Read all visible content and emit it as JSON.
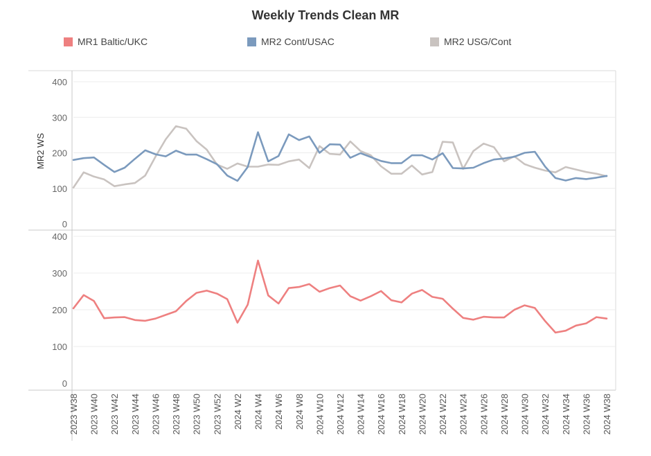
{
  "chart_data": {
    "type": "line",
    "title": "Weekly Trends Clean MR",
    "legend": [
      {
        "name": "MR1 Baltic/UKC",
        "color": "#ee8080"
      },
      {
        "name": "MR2 Cont/USAC",
        "color": "#7b9abd"
      },
      {
        "name": "MR2 USG/Cont",
        "color": "#c9c3c0"
      }
    ],
    "x": [
      "2023 W38",
      "2023 W39",
      "2023 W40",
      "2023 W41",
      "2023 W42",
      "2023 W43",
      "2023 W44",
      "2023 W45",
      "2023 W46",
      "2023 W47",
      "2023 W48",
      "2023 W49",
      "2023 W50",
      "2023 W51",
      "2023 W52",
      "2024 W1",
      "2024 W2",
      "2024 W3",
      "2024 W4",
      "2024 W5",
      "2024 W6",
      "2024 W7",
      "2024 W8",
      "2024 W9",
      "2024 W10",
      "2024 W11",
      "2024 W12",
      "2024 W13",
      "2024 W14",
      "2024 W15",
      "2024 W16",
      "2024 W17",
      "2024 W18",
      "2024 W19",
      "2024 W20",
      "2024 W21",
      "2024 W22",
      "2024 W23",
      "2024 W24",
      "2024 W25",
      "2024 W26",
      "2024 W27",
      "2024 W28",
      "2024 W29",
      "2024 W30",
      "2024 W31",
      "2024 W32",
      "2024 W33",
      "2024 W34",
      "2024 W35",
      "2024 W36",
      "2024 W37",
      "2024 W38"
    ],
    "xticklabels": [
      "2023 W38",
      "2023 W40",
      "2023 W42",
      "2023 W44",
      "2023 W46",
      "2023 W48",
      "2023 W50",
      "2023 W52",
      "2024 W2",
      "2024 W4",
      "2024 W6",
      "2024 W8",
      "2024 W10",
      "2024 W12",
      "2024 W14",
      "2024 W16",
      "2024 W18",
      "2024 W20",
      "2024 W22",
      "2024 W24",
      "2024 W26",
      "2024 W28",
      "2024 W30",
      "2024 W32",
      "2024 W34",
      "2024 W36",
      "2024 W38"
    ],
    "panels": [
      {
        "ylabel": "MR2 WS",
        "ylim": [
          0,
          420
        ],
        "yticks": [
          0,
          100,
          200,
          300,
          400
        ],
        "series": [
          {
            "name": "MR2 USG/Cont",
            "color": "#c9c3c0",
            "values": [
              102,
              145,
              133,
              125,
              106,
              111,
              115,
              136,
              189,
              238,
              275,
              268,
              233,
              209,
              167,
              155,
              170,
              161,
              161,
              167,
              166,
              176,
              181,
              157,
              219,
              197,
              195,
              232,
              205,
              193,
              162,
              141,
              141,
              164,
              139,
              146,
              231,
              229,
              155,
              205,
              226,
              216,
              176,
              190,
              168,
              158,
              150,
              145,
              160,
              153,
              146,
              141,
              134
            ]
          },
          {
            "name": "MR2 Cont/USAC",
            "color": "#7b9abd",
            "values": [
              180,
              185,
              187,
              166,
              146,
              158,
              183,
              207,
              196,
              190,
              206,
              195,
              195,
              182,
              168,
              136,
              121,
              160,
              258,
              176,
              191,
              252,
              236,
              246,
              200,
              224,
              223,
              186,
              199,
              188,
              177,
              171,
              171,
              193,
              193,
              181,
              199,
              157,
              156,
              158,
              171,
              181,
              184,
              189,
              200,
              203,
              161,
              129,
              122,
              129,
              126,
              130,
              135
            ]
          }
        ]
      },
      {
        "ylabel": "",
        "ylim": [
          0,
          420
        ],
        "yticks": [
          0,
          100,
          200,
          300,
          400
        ],
        "series": [
          {
            "name": "MR1 Baltic/UKC",
            "color": "#ee8080",
            "values": [
              204,
              240,
              224,
              177,
              179,
              180,
              172,
              170,
              176,
              186,
              196,
              224,
              246,
              252,
              244,
              229,
              165,
              214,
              334,
              239,
              217,
              259,
              262,
              270,
              249,
              259,
              266,
              237,
              225,
              237,
              251,
              226,
              220,
              244,
              254,
              235,
              230,
              203,
              178,
              173,
              181,
              179,
              179,
              200,
              212,
              205,
              169,
              138,
              143,
              157,
              163,
              180,
              176
            ]
          }
        ]
      }
    ],
    "grid": true
  }
}
